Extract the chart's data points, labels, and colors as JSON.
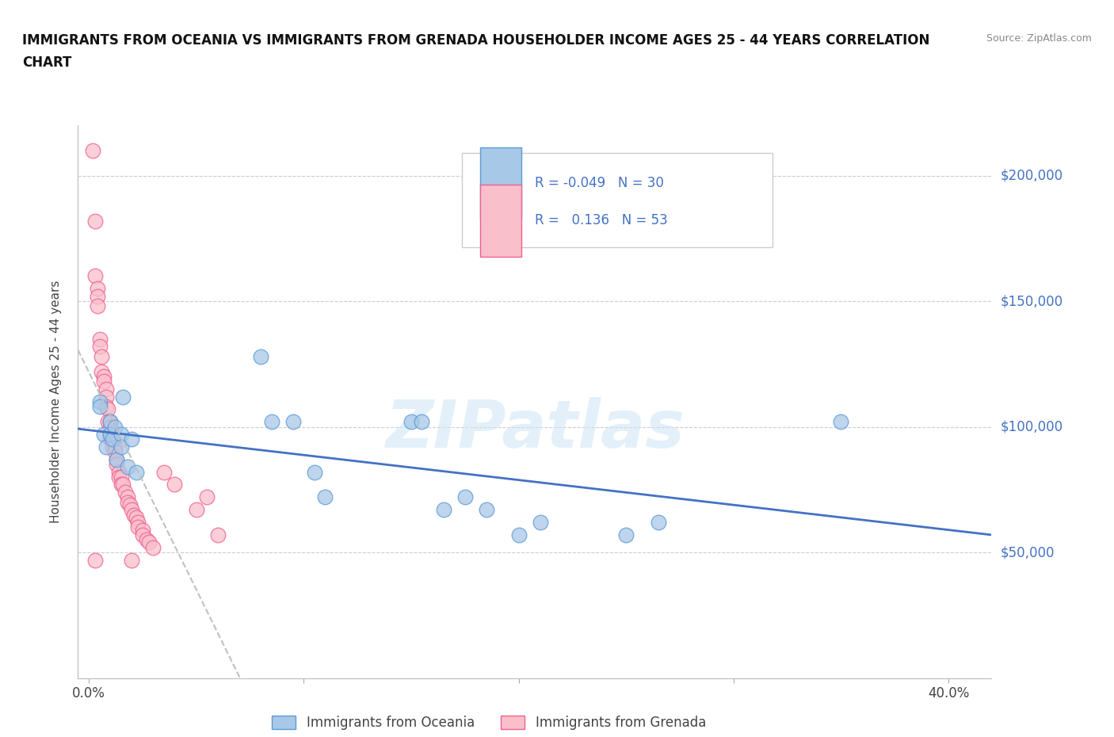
{
  "title_line1": "IMMIGRANTS FROM OCEANIA VS IMMIGRANTS FROM GRENADA HOUSEHOLDER INCOME AGES 25 - 44 YEARS CORRELATION",
  "title_line2": "CHART",
  "source": "Source: ZipAtlas.com",
  "ylabel": "Householder Income Ages 25 - 44 years",
  "ylim": [
    0,
    220000
  ],
  "xlim": [
    -0.005,
    0.42
  ],
  "yticks": [
    50000,
    100000,
    150000,
    200000
  ],
  "ytick_labels": [
    "$50,000",
    "$100,000",
    "$150,000",
    "$200,000"
  ],
  "watermark": "ZIPatlas",
  "legend_R_oceania": "-0.049",
  "legend_N_oceania": "30",
  "legend_R_grenada": "0.136",
  "legend_N_grenada": "53",
  "oceania_color": "#a8c8e8",
  "grenada_color": "#f9c0cc",
  "oceania_edge_color": "#5b9bd5",
  "grenada_edge_color": "#f06090",
  "oceania_line_color": "#4472c4",
  "grenada_line_color": "#c0c0c0",
  "x_tick_positions": [
    0.0,
    0.1,
    0.2,
    0.3,
    0.4
  ],
  "x_tick_labels": [
    "0.0%",
    "",
    "",
    "",
    "40.0%"
  ],
  "oceania_points": [
    [
      0.005,
      110000
    ],
    [
      0.005,
      108000
    ],
    [
      0.007,
      97000
    ],
    [
      0.008,
      92000
    ],
    [
      0.01,
      102000
    ],
    [
      0.01,
      97000
    ],
    [
      0.011,
      95000
    ],
    [
      0.012,
      100000
    ],
    [
      0.013,
      87000
    ],
    [
      0.015,
      97000
    ],
    [
      0.015,
      92000
    ],
    [
      0.016,
      112000
    ],
    [
      0.018,
      84000
    ],
    [
      0.02,
      95000
    ],
    [
      0.022,
      82000
    ],
    [
      0.08,
      128000
    ],
    [
      0.085,
      102000
    ],
    [
      0.095,
      102000
    ],
    [
      0.105,
      82000
    ],
    [
      0.11,
      72000
    ],
    [
      0.15,
      102000
    ],
    [
      0.155,
      102000
    ],
    [
      0.165,
      67000
    ],
    [
      0.175,
      72000
    ],
    [
      0.185,
      67000
    ],
    [
      0.2,
      57000
    ],
    [
      0.21,
      62000
    ],
    [
      0.25,
      57000
    ],
    [
      0.265,
      62000
    ],
    [
      0.35,
      102000
    ]
  ],
  "grenada_points": [
    [
      0.002,
      210000
    ],
    [
      0.003,
      182000
    ],
    [
      0.003,
      160000
    ],
    [
      0.004,
      155000
    ],
    [
      0.004,
      152000
    ],
    [
      0.004,
      148000
    ],
    [
      0.005,
      135000
    ],
    [
      0.005,
      132000
    ],
    [
      0.006,
      128000
    ],
    [
      0.006,
      122000
    ],
    [
      0.007,
      120000
    ],
    [
      0.007,
      118000
    ],
    [
      0.008,
      115000
    ],
    [
      0.008,
      112000
    ],
    [
      0.008,
      108000
    ],
    [
      0.009,
      107000
    ],
    [
      0.009,
      102000
    ],
    [
      0.01,
      102000
    ],
    [
      0.01,
      100000
    ],
    [
      0.01,
      97000
    ],
    [
      0.01,
      95000
    ],
    [
      0.011,
      94000
    ],
    [
      0.011,
      92000
    ],
    [
      0.012,
      92000
    ],
    [
      0.012,
      90000
    ],
    [
      0.013,
      87000
    ],
    [
      0.013,
      85000
    ],
    [
      0.014,
      82000
    ],
    [
      0.014,
      80000
    ],
    [
      0.015,
      80000
    ],
    [
      0.015,
      77000
    ],
    [
      0.016,
      77000
    ],
    [
      0.017,
      74000
    ],
    [
      0.018,
      72000
    ],
    [
      0.018,
      70000
    ],
    [
      0.019,
      69000
    ],
    [
      0.02,
      67000
    ],
    [
      0.021,
      65000
    ],
    [
      0.022,
      64000
    ],
    [
      0.023,
      62000
    ],
    [
      0.023,
      60000
    ],
    [
      0.025,
      59000
    ],
    [
      0.025,
      57000
    ],
    [
      0.027,
      55000
    ],
    [
      0.028,
      54000
    ],
    [
      0.03,
      52000
    ],
    [
      0.035,
      82000
    ],
    [
      0.04,
      77000
    ],
    [
      0.05,
      67000
    ],
    [
      0.055,
      72000
    ],
    [
      0.06,
      57000
    ],
    [
      0.003,
      47000
    ],
    [
      0.02,
      47000
    ]
  ]
}
